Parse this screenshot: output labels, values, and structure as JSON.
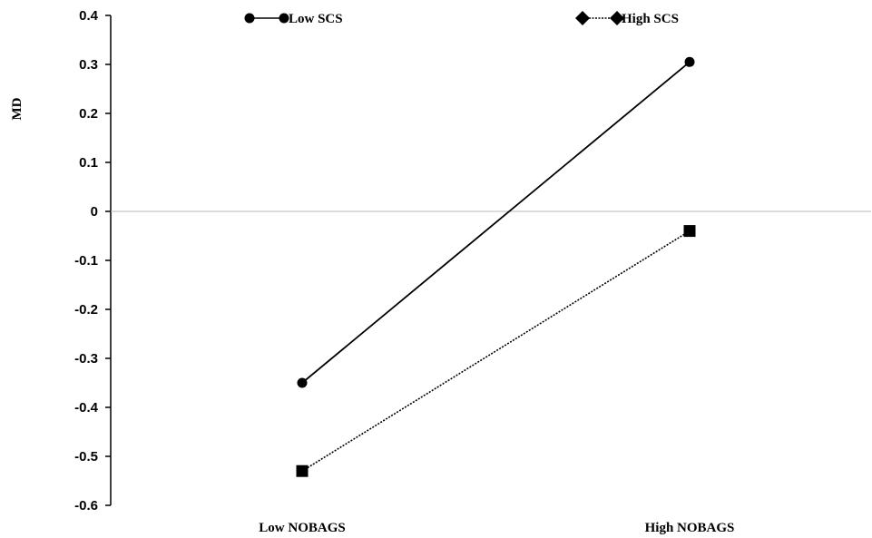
{
  "chart_data": {
    "type": "line",
    "categories": [
      "Low NOBAGS",
      "High NOBAGS"
    ],
    "series": [
      {
        "name": "Low SCS",
        "values": [
          -0.35,
          0.305
        ],
        "line_style": "solid",
        "marker": "circle",
        "color": "#000000"
      },
      {
        "name": "High SCS",
        "values": [
          -0.53,
          -0.04
        ],
        "line_style": "dotted",
        "marker": "square",
        "legend_marker": "diamond",
        "color": "#000000"
      }
    ],
    "ylabel": "MD",
    "xlabel": "",
    "ylim": [
      -0.6,
      0.4
    ],
    "yticks": [
      0.4,
      0.3,
      0.2,
      0.1,
      0,
      -0.1,
      -0.2,
      -0.3,
      -0.4,
      -0.5,
      -0.6
    ],
    "ytick_labels": [
      "0.4",
      "0.3",
      "0.2",
      "0.1",
      "0",
      "-0.1",
      "-0.2",
      "-0.3",
      "-0.4",
      "-0.5",
      "-0.6"
    ],
    "zero_line": true,
    "grid": false,
    "legend_position": "top"
  }
}
